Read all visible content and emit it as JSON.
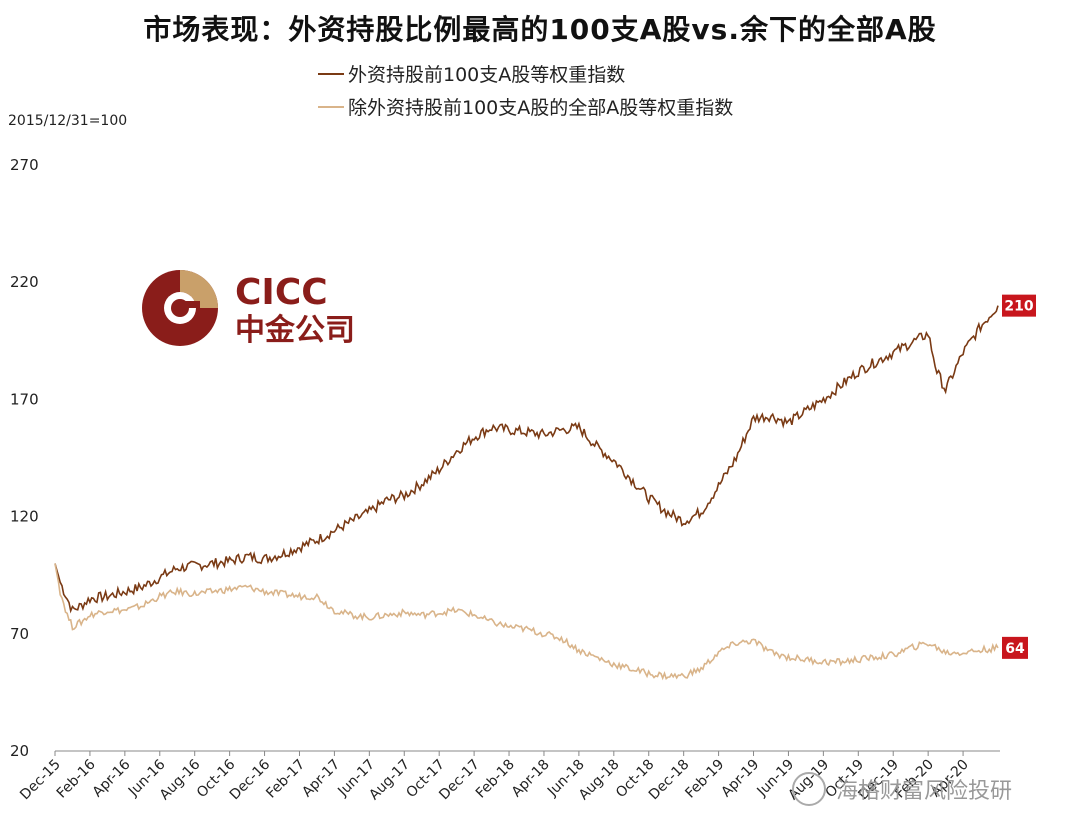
{
  "title": "市场表现：外资持股比例最高的100支A股vs.余下的全部A股",
  "base_note": "2015/12/31=100",
  "logo": {
    "text_en": "CICC",
    "text_cn": "中金公司"
  },
  "watermark": "海格财富风险投研",
  "colors": {
    "series1": "#7a3a14",
    "series2": "#d9b48a",
    "label_bg": "#c8161d"
  },
  "chart_data": {
    "type": "line",
    "title": "市场表现：外资持股比例最高的100支A股vs.余下的全部A股",
    "ylim": [
      20,
      270
    ],
    "y_ticks": [
      20,
      70,
      120,
      170,
      220,
      270
    ],
    "x_ticks": [
      "Dec-15",
      "Feb-16",
      "Apr-16",
      "Jun-16",
      "Aug-16",
      "Oct-16",
      "Dec-16",
      "Feb-17",
      "Apr-17",
      "Jun-17",
      "Aug-17",
      "Oct-17",
      "Dec-17",
      "Feb-18",
      "Apr-18",
      "Jun-18",
      "Aug-18",
      "Oct-18",
      "Dec-18",
      "Feb-19",
      "Apr-19",
      "Jun-19",
      "Aug-19",
      "Oct-19",
      "Dec-19",
      "Feb-20",
      "Apr-20"
    ],
    "x_months_from_start": [
      0,
      2,
      4,
      6,
      8,
      10,
      12,
      14,
      16,
      18,
      20,
      22,
      24,
      26,
      28,
      30,
      32,
      34,
      36,
      38,
      40,
      42,
      44,
      46,
      48,
      50,
      52
    ],
    "grid": false,
    "legend_position": "top",
    "series": [
      {
        "name": "外资持股前100支A股等权重指数",
        "end_label": "210",
        "points": [
          [
            0,
            100
          ],
          [
            0.3,
            92
          ],
          [
            0.7,
            85
          ],
          [
            1,
            80
          ],
          [
            1.5,
            82
          ],
          [
            2,
            85
          ],
          [
            3,
            86
          ],
          [
            4,
            88
          ],
          [
            5,
            90
          ],
          [
            6,
            94
          ],
          [
            7,
            98
          ],
          [
            8,
            99
          ],
          [
            9,
            100
          ],
          [
            10,
            101
          ],
          [
            11,
            103
          ],
          [
            12,
            102
          ],
          [
            13,
            104
          ],
          [
            14,
            107
          ],
          [
            15,
            110
          ],
          [
            16,
            114
          ],
          [
            17,
            118
          ],
          [
            18,
            122
          ],
          [
            19,
            127
          ],
          [
            20,
            129
          ],
          [
            21,
            134
          ],
          [
            22,
            140
          ],
          [
            23,
            148
          ],
          [
            24,
            154
          ],
          [
            25,
            158
          ],
          [
            26,
            157
          ],
          [
            27,
            156
          ],
          [
            28,
            155
          ],
          [
            29,
            157
          ],
          [
            30,
            158
          ],
          [
            31,
            150
          ],
          [
            32,
            144
          ],
          [
            33,
            136
          ],
          [
            34,
            128
          ],
          [
            35,
            122
          ],
          [
            36,
            118
          ],
          [
            37,
            122
          ],
          [
            38,
            133
          ],
          [
            39,
            145
          ],
          [
            40,
            162
          ],
          [
            41,
            163
          ],
          [
            42,
            160
          ],
          [
            43,
            165
          ],
          [
            44,
            170
          ],
          [
            45,
            176
          ],
          [
            46,
            182
          ],
          [
            47,
            186
          ],
          [
            48,
            190
          ],
          [
            49,
            194
          ],
          [
            50,
            198
          ],
          [
            50.5,
            182
          ],
          [
            51,
            174
          ],
          [
            52,
            190
          ],
          [
            53,
            201
          ],
          [
            54,
            210
          ]
        ]
      },
      {
        "name": "除外资持股前100支A股的全部A股等权重指数",
        "end_label": "64",
        "points": [
          [
            0,
            100
          ],
          [
            0.3,
            88
          ],
          [
            0.7,
            78
          ],
          [
            1,
            73
          ],
          [
            1.5,
            75
          ],
          [
            2,
            78
          ],
          [
            3,
            80
          ],
          [
            4,
            80
          ],
          [
            5,
            82
          ],
          [
            6,
            86
          ],
          [
            7,
            88
          ],
          [
            8,
            87
          ],
          [
            9,
            88
          ],
          [
            10,
            89
          ],
          [
            11,
            90
          ],
          [
            12,
            88
          ],
          [
            13,
            87
          ],
          [
            14,
            86
          ],
          [
            15,
            86
          ],
          [
            16,
            80
          ],
          [
            17,
            78
          ],
          [
            18,
            77
          ],
          [
            19,
            78
          ],
          [
            20,
            79
          ],
          [
            21,
            78
          ],
          [
            22,
            79
          ],
          [
            23,
            80
          ],
          [
            24,
            78
          ],
          [
            25,
            75
          ],
          [
            26,
            73
          ],
          [
            27,
            72
          ],
          [
            28,
            70
          ],
          [
            29,
            68
          ],
          [
            30,
            63
          ],
          [
            31,
            60
          ],
          [
            32,
            57
          ],
          [
            33,
            55
          ],
          [
            34,
            53
          ],
          [
            35,
            52
          ],
          [
            36,
            52
          ],
          [
            37,
            55
          ],
          [
            38,
            62
          ],
          [
            39,
            66
          ],
          [
            40,
            67
          ],
          [
            41,
            62
          ],
          [
            42,
            60
          ],
          [
            43,
            59
          ],
          [
            44,
            58
          ],
          [
            45,
            58
          ],
          [
            46,
            59
          ],
          [
            47,
            60
          ],
          [
            48,
            61
          ],
          [
            49,
            64
          ],
          [
            50,
            66
          ],
          [
            51,
            62
          ],
          [
            52,
            62
          ],
          [
            53,
            63
          ],
          [
            54,
            64
          ]
        ]
      }
    ]
  }
}
